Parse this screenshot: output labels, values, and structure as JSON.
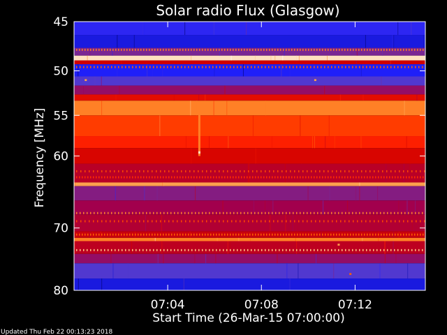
{
  "chart_data": {
    "type": "heatmap",
    "title": "Solar radio Flux (Glasgow)",
    "xlabel": "Start Time (26-Mar-15 07:00:00)",
    "ylabel": "Frequency [MHz]",
    "x_unit": "minutes after 07:00:00",
    "xlim": [
      0,
      15
    ],
    "ylim": [
      45,
      80
    ],
    "y_scale": "log",
    "y_axis_direction": "increasing downward",
    "x_ticks": [
      {
        "value": 4,
        "label": "07:04"
      },
      {
        "value": 8,
        "label": "07:08"
      },
      {
        "value": 12,
        "label": "07:12"
      }
    ],
    "y_ticks": [
      {
        "value": 45,
        "label": "45"
      },
      {
        "value": 50,
        "label": "50"
      },
      {
        "value": 55,
        "label": "55"
      },
      {
        "value": 60,
        "label": "60"
      },
      {
        "value": 70,
        "label": "70"
      },
      {
        "value": 80,
        "label": "80"
      }
    ],
    "colormap": [
      "#000060",
      "#2020ff",
      "#6040c0",
      "#a00050",
      "#d00000",
      "#ff2000",
      "#ff6000",
      "#ffb060",
      "#ffffff"
    ],
    "frequency_bands": [
      {
        "from": 45.0,
        "to": 46.3,
        "level": 0.15
      },
      {
        "from": 46.3,
        "to": 47.6,
        "level": 0.1
      },
      {
        "from": 47.6,
        "to": 48.4,
        "level": 0.3
      },
      {
        "from": 48.4,
        "to": 48.9,
        "level": 0.95
      },
      {
        "from": 48.9,
        "to": 49.3,
        "level": 0.5
      },
      {
        "from": 49.3,
        "to": 50.6,
        "level": 0.12
      },
      {
        "from": 50.6,
        "to": 51.6,
        "level": 0.22
      },
      {
        "from": 51.6,
        "to": 52.6,
        "level": 0.35
      },
      {
        "from": 52.6,
        "to": 53.3,
        "level": 0.55
      },
      {
        "from": 53.3,
        "to": 55.0,
        "level": 0.8
      },
      {
        "from": 55.0,
        "to": 57.5,
        "level": 0.68
      },
      {
        "from": 57.5,
        "to": 59.0,
        "level": 0.62
      },
      {
        "from": 59.0,
        "to": 61.0,
        "level": 0.52
      },
      {
        "from": 61.0,
        "to": 63.5,
        "level": 0.44
      },
      {
        "from": 63.5,
        "to": 64.0,
        "level": 0.85
      },
      {
        "from": 64.0,
        "to": 66.0,
        "level": 0.32
      },
      {
        "from": 66.0,
        "to": 68.0,
        "level": 0.38
      },
      {
        "from": 68.0,
        "to": 70.5,
        "level": 0.42
      },
      {
        "from": 70.5,
        "to": 71.5,
        "level": 0.48
      },
      {
        "from": 71.5,
        "to": 72.0,
        "level": 0.8
      },
      {
        "from": 72.0,
        "to": 74.0,
        "level": 0.45
      },
      {
        "from": 74.0,
        "to": 75.5,
        "level": 0.35
      },
      {
        "from": 75.5,
        "to": 78.0,
        "level": 0.22
      },
      {
        "from": 78.0,
        "to": 80.0,
        "level": 0.1
      }
    ],
    "interference_lines": [
      {
        "freq": 47.8,
        "level": 0.8
      },
      {
        "freq": 49.6,
        "level": 0.75
      },
      {
        "freq": 62.0,
        "level": 0.7
      },
      {
        "freq": 62.8,
        "level": 0.65
      },
      {
        "freq": 67.8,
        "level": 0.8
      },
      {
        "freq": 69.0,
        "level": 0.7
      },
      {
        "freq": 71.0,
        "level": 0.75
      },
      {
        "freq": 73.4,
        "level": 0.9
      }
    ],
    "bursts": [
      {
        "time": 5.35,
        "freq_from": 53.5,
        "freq_to": 60.0,
        "level": 0.8
      },
      {
        "time": 5.35,
        "freq_from": 59.4,
        "freq_to": 59.7,
        "level": 0.95
      },
      {
        "time": 0.5,
        "freq_from": 50.9,
        "freq_to": 51.1,
        "level": 0.85
      },
      {
        "time": 10.3,
        "freq_from": 50.9,
        "freq_to": 51.1,
        "level": 0.85
      },
      {
        "time": 11.3,
        "freq_from": 72.4,
        "freq_to": 72.7,
        "level": 0.85
      },
      {
        "time": 11.8,
        "freq_from": 77.1,
        "freq_to": 77.4,
        "level": 0.75
      }
    ]
  },
  "footer": {
    "updated_text": "Updated Thu Feb 22 00:13:23 2018"
  }
}
